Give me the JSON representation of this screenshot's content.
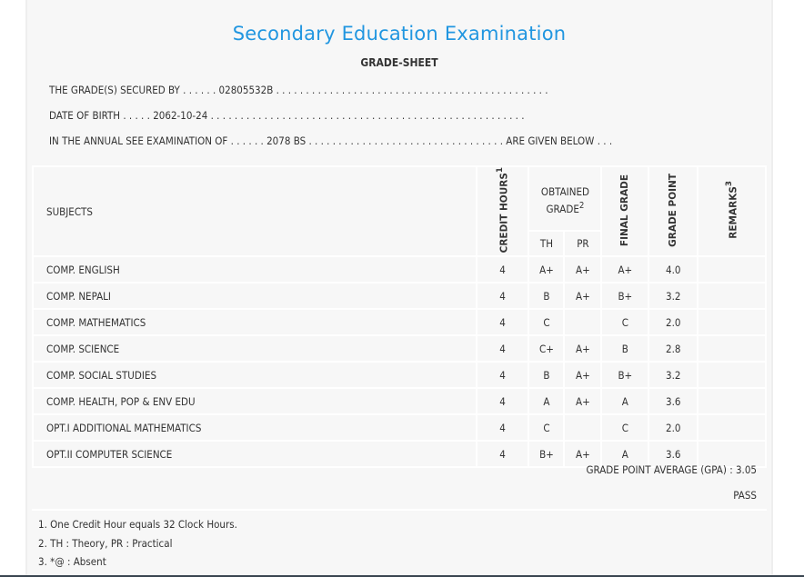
{
  "title": "Secondary Education Examination",
  "subtitle": "GRADE-SHEET",
  "info": {
    "secured_by_prefix": "THE GRADE(S) SECURED BY . . . . . . ",
    "secured_by": "02805532B",
    "secured_by_suffix": " . . . . . . . . . . . . . . . . . . . . . . . . . . . . . . . . . . . . . . . . . . . . . .",
    "dob_prefix": "DATE OF BIRTH . . . . . ",
    "dob": "2062-10-24",
    "dob_suffix": " . . . . . . . . . . . . . . . . . . . . . . . . . . . . . . . . . . . . . . . . . . . . . . . . . . . . .",
    "exam_prefix": "IN THE ANNUAL SEE EXAMINATION OF . . . . . . ",
    "exam": "2078 BS",
    "exam_suffix": " . . . . . . . . . . . . . . . . . . . . . . . . . . . . . . . . . ARE GIVEN BELOW . . ."
  },
  "table": {
    "headers": {
      "subjects": "SUBJECTS",
      "credit_hours": "CREDIT HOURS",
      "credit_sup": "1",
      "obtained_grade": "OBTAINED GRADE",
      "obtained_sup": "2",
      "th": "TH",
      "pr": "PR",
      "final_grade": "FINAL GRADE",
      "grade_point": "GRADE POINT",
      "remarks": "REMARKS",
      "remarks_sup": "3"
    },
    "rows": [
      {
        "subject": "COMP. ENGLISH",
        "credit": "4",
        "th": "A+",
        "pr": "A+",
        "final": "A+",
        "gp": "4.0",
        "remarks": ""
      },
      {
        "subject": "COMP. NEPALI",
        "credit": "4",
        "th": "B",
        "pr": "A+",
        "final": "B+",
        "gp": "3.2",
        "remarks": ""
      },
      {
        "subject": "COMP. MATHEMATICS",
        "credit": "4",
        "th": "C",
        "pr": "",
        "final": "C",
        "gp": "2.0",
        "remarks": ""
      },
      {
        "subject": "COMP. SCIENCE",
        "credit": "4",
        "th": "C+",
        "pr": "A+",
        "final": "B",
        "gp": "2.8",
        "remarks": ""
      },
      {
        "subject": "COMP. SOCIAL STUDIES",
        "credit": "4",
        "th": "B",
        "pr": "A+",
        "final": "B+",
        "gp": "3.2",
        "remarks": ""
      },
      {
        "subject": "COMP. HEALTH, POP & ENV EDU",
        "credit": "4",
        "th": "A",
        "pr": "A+",
        "final": "A",
        "gp": "3.6",
        "remarks": ""
      },
      {
        "subject": "OPT.I ADDITIONAL MATHEMATICS",
        "credit": "4",
        "th": "C",
        "pr": "",
        "final": "C",
        "gp": "2.0",
        "remarks": ""
      },
      {
        "subject": "OPT.II COMPUTER SCIENCE",
        "credit": "4",
        "th": "B+",
        "pr": "A+",
        "final": "A",
        "gp": "3.6",
        "remarks": ""
      }
    ]
  },
  "gpa_label": "GRADE POINT AVERAGE (GPA) : 3.05",
  "result": "PASS",
  "notes": [
    "1. One Credit Hour equals 32 Clock Hours.",
    "2. TH : Theory, PR : Practical",
    "3. *@ : Absent"
  ],
  "colors": {
    "title": "#2196e0",
    "background": "#f7f7f7"
  }
}
